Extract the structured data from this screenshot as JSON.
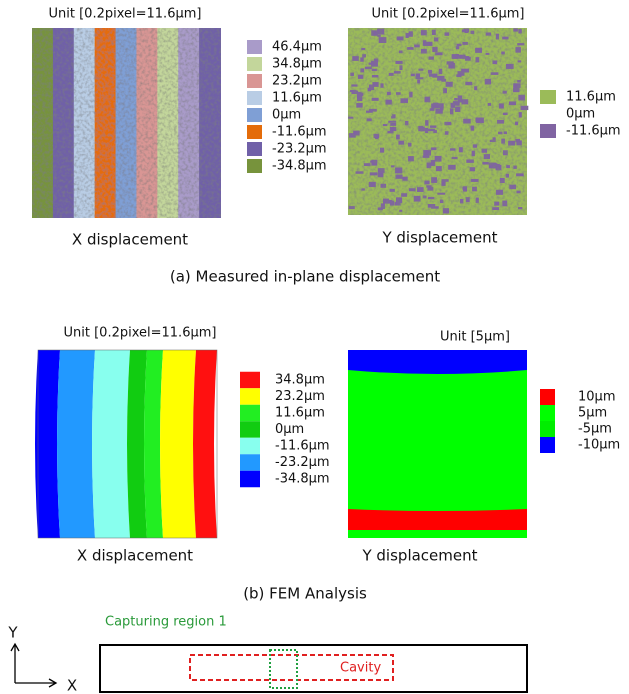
{
  "measured": {
    "caption": "(a) Measured in-plane displacement",
    "x": {
      "unit": "Unit [0.2pixel=11.6µm]",
      "caption": "X displacement",
      "legend": [
        {
          "label": "46.4µm",
          "color": "#a99bc9"
        },
        {
          "label": "34.8µm",
          "color": "#c3d69b"
        },
        {
          "label": "23.2µm",
          "color": "#d99694"
        },
        {
          "label": "11.6µm",
          "color": "#b9cde5"
        },
        {
          "label": "0µm",
          "color": "#7f9fd5"
        },
        {
          "label": "-11.6µm",
          "color": "#e46c0a"
        },
        {
          "label": "-23.2µm",
          "color": "#7060a8"
        },
        {
          "label": "-34.8µm",
          "color": "#77933c"
        }
      ]
    },
    "y": {
      "unit": "Unit [0.2pixel=11.6µm]",
      "caption": "Y displacement",
      "legend": [
        {
          "label": "11.6µm",
          "color": "#9bbb59"
        },
        {
          "label": "0µm"
        },
        {
          "label": "-11.6µm",
          "color": "#8064a2"
        }
      ]
    }
  },
  "fem": {
    "caption": "(b) FEM Analysis",
    "x": {
      "unit": "Unit [0.2pixel=11.6µm]",
      "caption": "X displacement",
      "legend": [
        {
          "label": "34.8µm",
          "color": "#ff1010"
        },
        {
          "label": "23.2µm",
          "color": "#ffff00"
        },
        {
          "label": "11.6µm",
          "color": "#22ee22"
        },
        {
          "label": "0µm",
          "color": "#11cc11"
        },
        {
          "label": "-11.6µm",
          "color": "#88ffee"
        },
        {
          "label": "-23.2µm",
          "color": "#2299ff"
        },
        {
          "label": "-34.8µm",
          "color": "#0000ff"
        }
      ]
    },
    "y": {
      "unit": "Unit [5µm]",
      "caption": "Y displacement",
      "legend": [
        {
          "label": "10µm",
          "color": "#ff0000"
        },
        {
          "label": "5µm",
          "color": "#00ff00"
        },
        {
          "label": "-5µm",
          "color": "#00ee00"
        },
        {
          "label": "-10µm",
          "color": "#0000ff"
        }
      ]
    }
  },
  "diagram": {
    "axis_y": "Y",
    "axis_x": "X",
    "region": "Capturing region 1",
    "cavity": "Cavity"
  }
}
